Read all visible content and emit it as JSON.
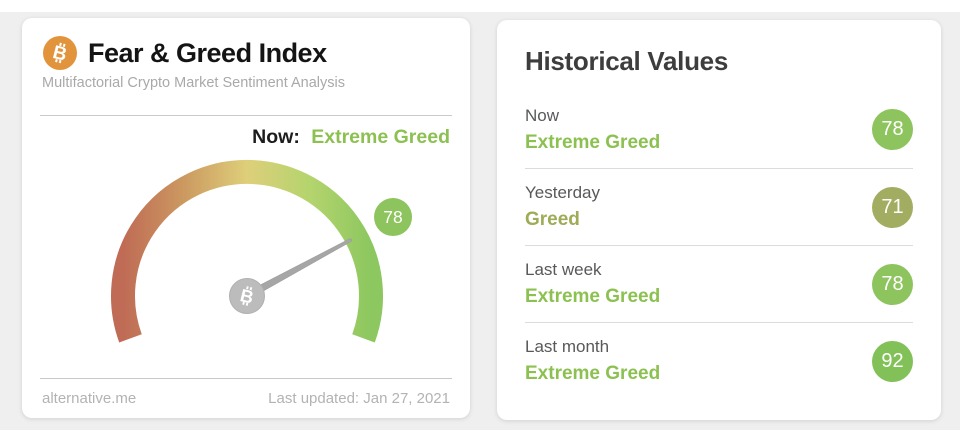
{
  "page": {
    "background_band": "#efeff0"
  },
  "gauge_card": {
    "title": "Fear & Greed Index",
    "subtitle": "Multifactorial Crypto Market Sentiment Analysis",
    "now_label": "Now:",
    "now_value": "Extreme Greed",
    "now_value_color": "#8cc152",
    "bitcoin_orange": "#e2943d",
    "footer": {
      "site": "alternative.me",
      "last_updated": "Last updated: Jan 27, 2021"
    }
  },
  "history": {
    "title": "Historical Values",
    "rows": [
      {
        "period": "Now",
        "classification": "Extreme Greed",
        "value": "78",
        "badge_color": "#8dc45e",
        "text_color": "#8cc152"
      },
      {
        "period": "Yesterday",
        "classification": "Greed",
        "value": "71",
        "badge_color": "#a3ad62",
        "text_color": "#9fab57"
      },
      {
        "period": "Last week",
        "classification": "Extreme Greed",
        "value": "78",
        "badge_color": "#8dc45e",
        "text_color": "#8cc152"
      },
      {
        "period": "Last month",
        "classification": "Extreme Greed",
        "value": "92",
        "badge_color": "#82c157",
        "text_color": "#8cc152"
      }
    ]
  },
  "chart_data": {
    "type": "gauge",
    "title": "Fear & Greed Index",
    "min": 0,
    "max": 100,
    "value": 78,
    "classification": "Extreme Greed",
    "arc_start_deg": 200,
    "arc_end_deg": -20,
    "scale_colors": [
      "#bf6b55",
      "#cc9a61",
      "#decf7a",
      "#b5d46e",
      "#8dc75f"
    ],
    "needle_color": "#a6a6a6",
    "hub_color": "#bcbcbc",
    "badge_color": "#8dc45e",
    "historical": [
      {
        "period": "Now",
        "classification": "Extreme Greed",
        "value": 78
      },
      {
        "period": "Yesterday",
        "classification": "Greed",
        "value": 71
      },
      {
        "period": "Last week",
        "classification": "Extreme Greed",
        "value": 78
      },
      {
        "period": "Last month",
        "classification": "Extreme Greed",
        "value": 92
      }
    ]
  }
}
